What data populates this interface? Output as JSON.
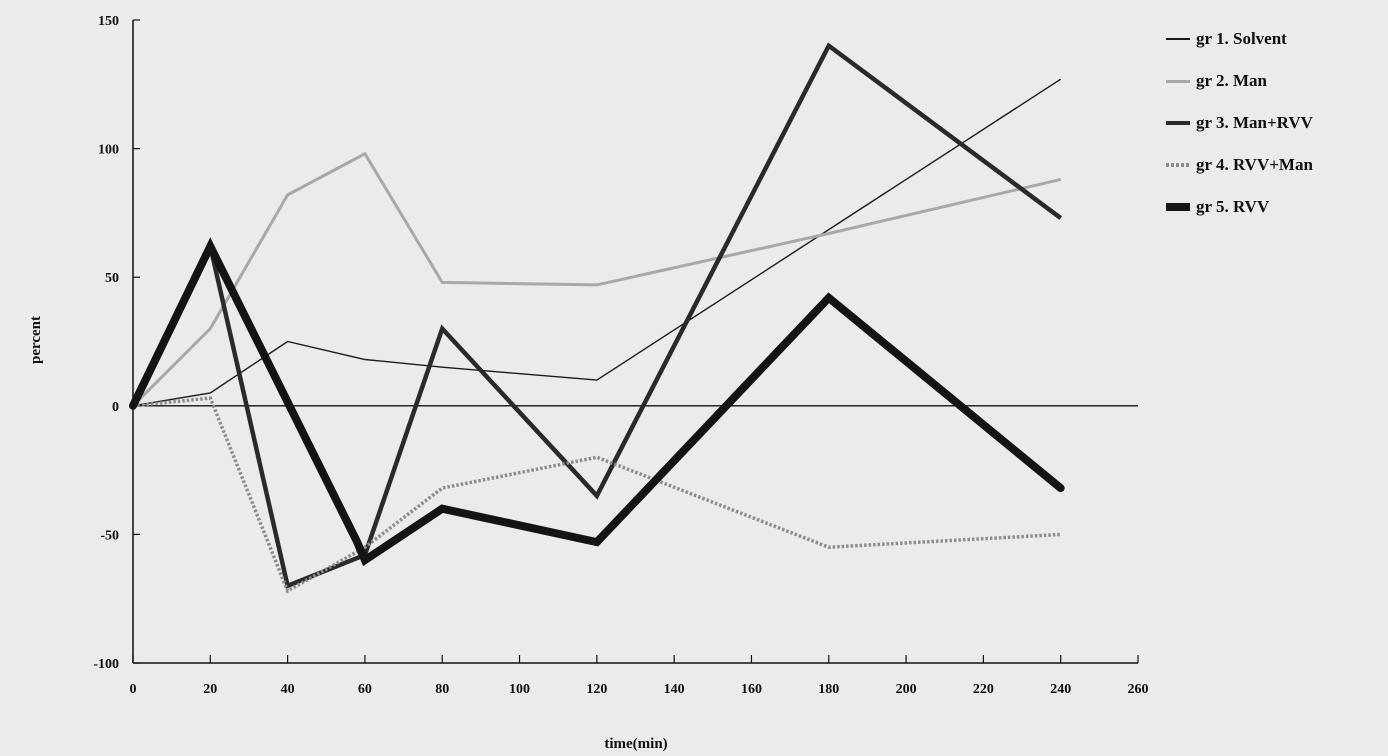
{
  "chart_data": {
    "type": "line",
    "xlabel": "time(min)",
    "ylabel": "percent",
    "xlim": [
      0,
      260
    ],
    "ylim": [
      -100,
      150
    ],
    "x_ticks": [
      0,
      20,
      40,
      60,
      80,
      100,
      120,
      140,
      160,
      180,
      200,
      220,
      240,
      260
    ],
    "y_ticks": [
      -100,
      -50,
      0,
      50,
      100,
      150
    ],
    "legend_position": "right",
    "grid": false,
    "series": [
      {
        "name": "gr 1. Solvent",
        "style": "thin",
        "color": "#1a1a1a",
        "x": [
          0,
          20,
          40,
          60,
          80,
          120,
          240
        ],
        "y": [
          0,
          5,
          25,
          18,
          15,
          10,
          127
        ]
      },
      {
        "name": "gr 2. Man",
        "style": "light",
        "color": "#a8a8a8",
        "x": [
          0,
          20,
          40,
          60,
          80,
          120,
          180,
          240
        ],
        "y": [
          0,
          30,
          82,
          98,
          48,
          47,
          67,
          88
        ]
      },
      {
        "name": "gr 3. Man+RVV",
        "style": "medium",
        "color": "#2a2a2a",
        "x": [
          0,
          20,
          40,
          60,
          80,
          120,
          180,
          240
        ],
        "y": [
          0,
          62,
          -70,
          -58,
          30,
          -35,
          140,
          73
        ]
      },
      {
        "name": "gr 4. RVV+Man",
        "style": "dotted",
        "color": "#8c8c8c",
        "x": [
          0,
          20,
          40,
          60,
          80,
          120,
          180,
          240
        ],
        "y": [
          0,
          3,
          -72,
          -55,
          -32,
          -20,
          -55,
          -50
        ]
      },
      {
        "name": "gr 5. RVV",
        "style": "thick",
        "color": "#141414",
        "x": [
          0,
          20,
          58,
          60,
          80,
          120,
          180,
          240
        ],
        "y": [
          0,
          62,
          -53,
          -60,
          -40,
          -53,
          42,
          -32
        ]
      }
    ]
  }
}
